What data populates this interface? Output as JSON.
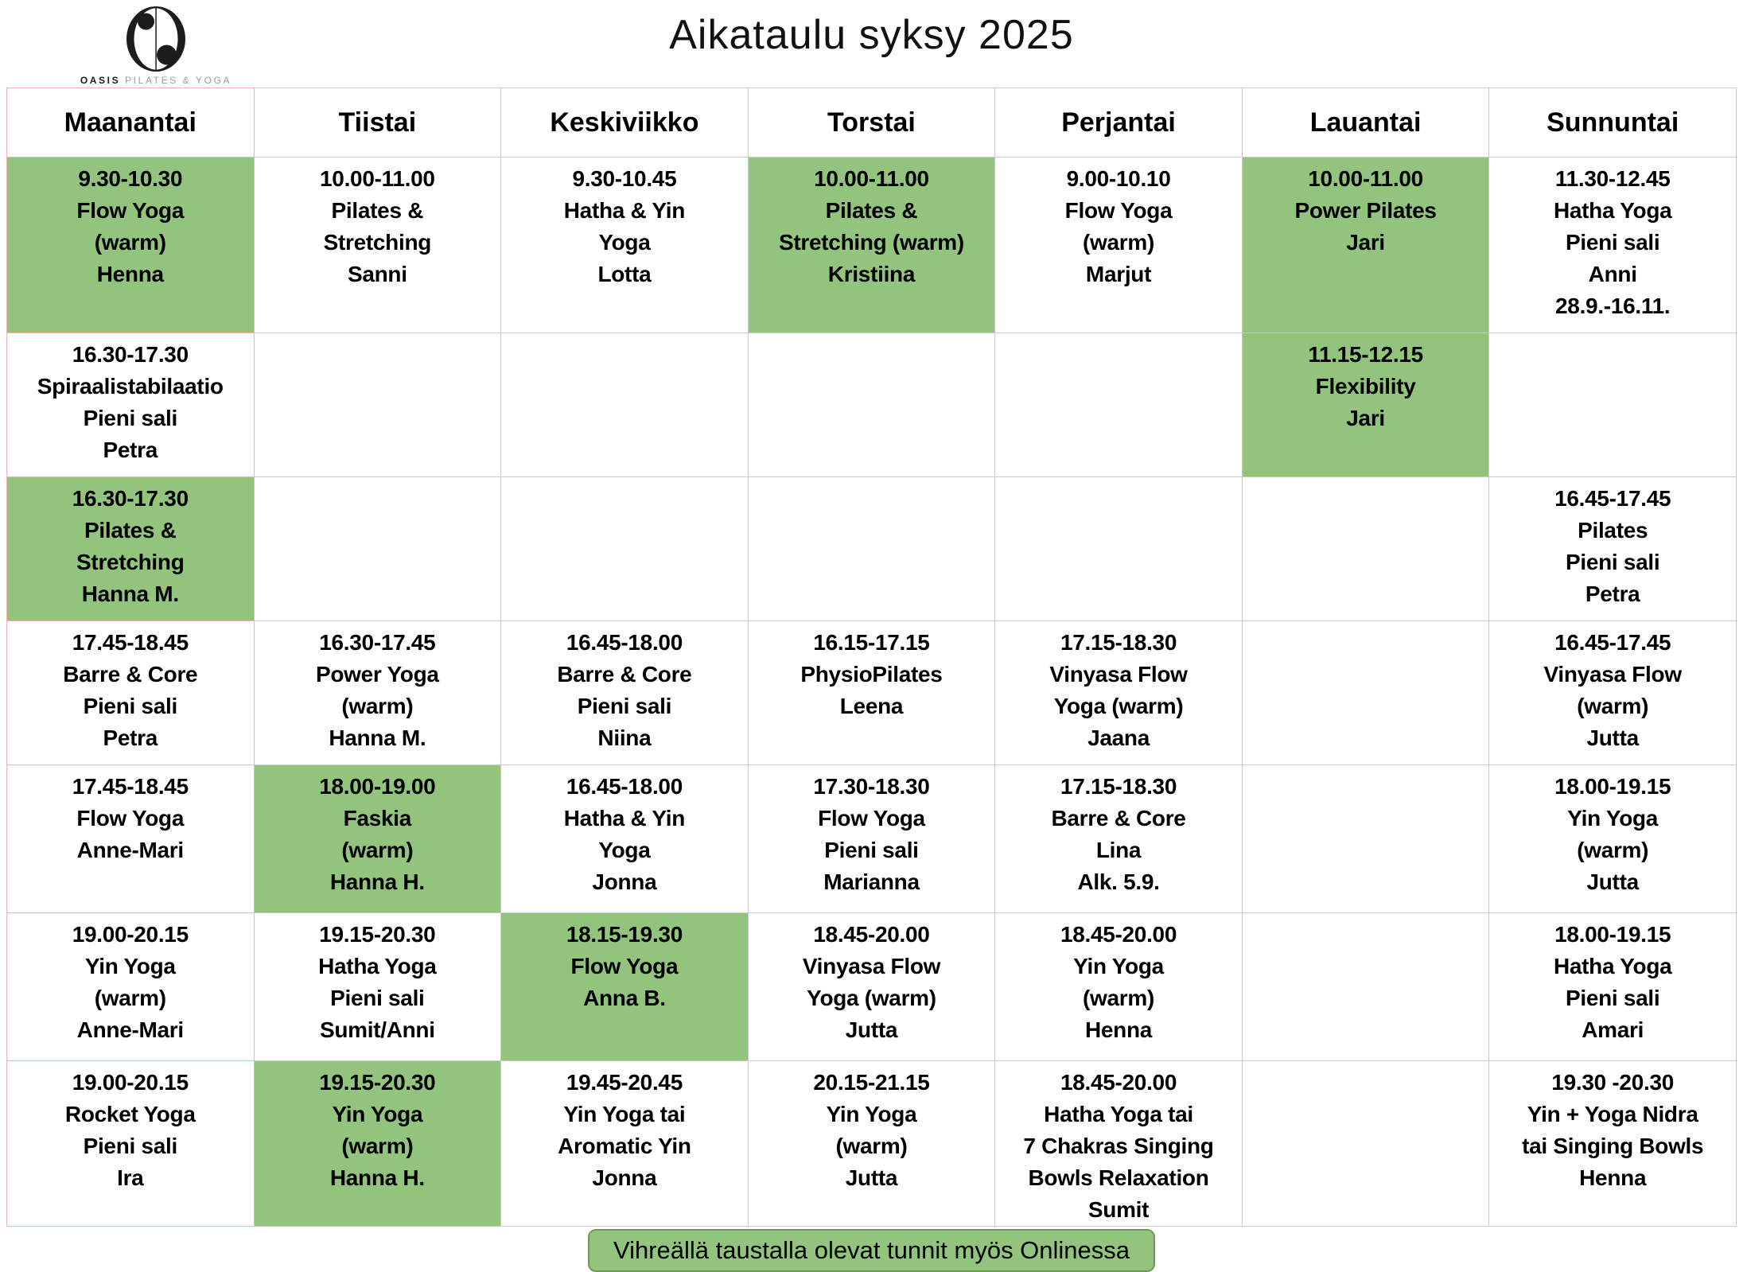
{
  "header": {
    "logo": {
      "brand_bold": "OASIS",
      "brand_rest": "PILATES & YOGA"
    },
    "title": "Aikataulu syksy 2025"
  },
  "legend": {
    "text": "Vihreällä taustalla olevat tunnit myös Onlinessa"
  },
  "colors": {
    "online_green": "#93c47d",
    "legend_border": "#6b9a52",
    "grid_border": "#cbcbcb",
    "monday_border": "#eeb4ad"
  },
  "table": {
    "days": [
      {
        "label": "Maanantai",
        "slots": [
          {
            "time": "9.30-10.30",
            "lines": [
              "Flow Yoga",
              "(warm)",
              "Henna"
            ],
            "online": true
          },
          {
            "time": "16.30-17.30",
            "lines": [
              "Spiraalistabilaatio",
              "Pieni sali",
              "Petra"
            ],
            "online": false
          },
          {
            "time": "16.30-17.30",
            "lines": [
              "Pilates &",
              "Stretching",
              "Hanna M."
            ],
            "online": true
          },
          {
            "time": "17.45-18.45",
            "lines": [
              "Barre & Core",
              "Pieni sali",
              "Petra"
            ],
            "online": false
          },
          {
            "time": "17.45-18.45",
            "lines": [
              "Flow Yoga",
              "Anne-Mari"
            ],
            "online": false
          },
          {
            "time": "19.00-20.15",
            "lines": [
              "Yin Yoga",
              "(warm)",
              "Anne-Mari"
            ],
            "online": false
          },
          {
            "time": "19.00-20.15",
            "lines": [
              "Rocket Yoga",
              "Pieni sali",
              "Ira"
            ],
            "online": false
          }
        ]
      },
      {
        "label": "Tiistai",
        "slots": [
          {
            "time": "10.00-11.00",
            "lines": [
              "Pilates &",
              "Stretching",
              "Sanni"
            ],
            "online": false
          },
          null,
          null,
          {
            "time": "16.30-17.45",
            "lines": [
              "Power Yoga",
              "(warm)",
              "Hanna M."
            ],
            "online": false
          },
          {
            "time": "18.00-19.00",
            "lines": [
              "Faskia",
              "(warm)",
              "Hanna H."
            ],
            "online": true
          },
          {
            "time": "19.15-20.30",
            "lines": [
              "Hatha Yoga",
              "Pieni sali",
              "Sumit/Anni"
            ],
            "online": false
          },
          {
            "time": "19.15-20.30",
            "lines": [
              "Yin Yoga",
              "(warm)",
              "Hanna H."
            ],
            "online": true
          }
        ]
      },
      {
        "label": "Keskiviikko",
        "slots": [
          {
            "time": "9.30-10.45",
            "lines": [
              "Hatha & Yin",
              "Yoga",
              "Lotta"
            ],
            "online": false
          },
          null,
          null,
          {
            "time": "16.45-18.00",
            "lines": [
              "Barre & Core",
              "Pieni sali",
              "Niina"
            ],
            "online": false
          },
          {
            "time": "16.45-18.00",
            "lines": [
              "Hatha & Yin",
              "Yoga",
              "Jonna"
            ],
            "online": false
          },
          {
            "time": "18.15-19.30",
            "lines": [
              "Flow Yoga",
              "Anna B."
            ],
            "online": true
          },
          {
            "time": "19.45-20.45",
            "lines": [
              "Yin Yoga tai",
              "Aromatic Yin",
              "Jonna"
            ],
            "online": false
          }
        ]
      },
      {
        "label": "Torstai",
        "slots": [
          {
            "time": "10.00-11.00",
            "lines": [
              "Pilates &",
              "Stretching (warm)",
              "Kristiina"
            ],
            "online": true
          },
          null,
          null,
          {
            "time": "16.15-17.15",
            "lines": [
              "PhysioPilates",
              "Leena"
            ],
            "online": false
          },
          {
            "time": "17.30-18.30",
            "lines": [
              "Flow Yoga",
              "Pieni sali",
              "Marianna"
            ],
            "online": false
          },
          {
            "time": "18.45-20.00",
            "lines": [
              "Vinyasa Flow",
              "Yoga (warm)",
              "Jutta"
            ],
            "online": false
          },
          {
            "time": "20.15-21.15",
            "lines": [
              "Yin Yoga",
              "(warm)",
              "Jutta"
            ],
            "online": false
          }
        ]
      },
      {
        "label": "Perjantai",
        "slots": [
          {
            "time": "9.00-10.10",
            "lines": [
              "Flow Yoga",
              "(warm)",
              "Marjut"
            ],
            "online": false
          },
          null,
          null,
          {
            "time": "17.15-18.30",
            "lines": [
              "Vinyasa Flow",
              "Yoga (warm)",
              "Jaana"
            ],
            "online": false
          },
          {
            "time": "17.15-18.30",
            "lines": [
              "Barre & Core",
              "Lina",
              "Alk. 5.9."
            ],
            "online": false
          },
          {
            "time": "18.45-20.00",
            "lines": [
              "Yin Yoga",
              "(warm)",
              "Henna"
            ],
            "online": false
          },
          {
            "time": "18.45-20.00",
            "lines": [
              "Hatha Yoga tai",
              "7 Chakras Singing",
              "Bowls Relaxation",
              "Sumit"
            ],
            "online": false
          }
        ]
      },
      {
        "label": "Lauantai",
        "slots": [
          {
            "time": "10.00-11.00",
            "lines": [
              "Power Pilates",
              "Jari"
            ],
            "online": true
          },
          {
            "time": "11.15-12.15",
            "lines": [
              "Flexibility",
              "Jari"
            ],
            "online": true
          },
          null,
          null,
          null,
          null,
          null
        ]
      },
      {
        "label": "Sunnuntai",
        "slots": [
          {
            "time": "11.30-12.45",
            "lines": [
              "Hatha Yoga",
              "Pieni sali",
              "Anni",
              "28.9.-16.11."
            ],
            "online": false
          },
          null,
          {
            "time": "16.45-17.45",
            "lines": [
              "Pilates",
              "Pieni sali",
              "Petra"
            ],
            "online": false
          },
          {
            "time": "16.45-17.45",
            "lines": [
              "Vinyasa Flow",
              "(warm)",
              "Jutta"
            ],
            "online": false
          },
          {
            "time": "18.00-19.15",
            "lines": [
              "Yin Yoga",
              "(warm)",
              "Jutta"
            ],
            "online": false
          },
          {
            "time": "18.00-19.15",
            "lines": [
              "Hatha Yoga",
              "Pieni sali",
              "Amari"
            ],
            "online": false
          },
          {
            "time": "19.30 -20.30",
            "lines": [
              "Yin + Yoga Nidra",
              "tai Singing Bowls",
              "Henna"
            ],
            "online": false
          }
        ]
      }
    ]
  }
}
